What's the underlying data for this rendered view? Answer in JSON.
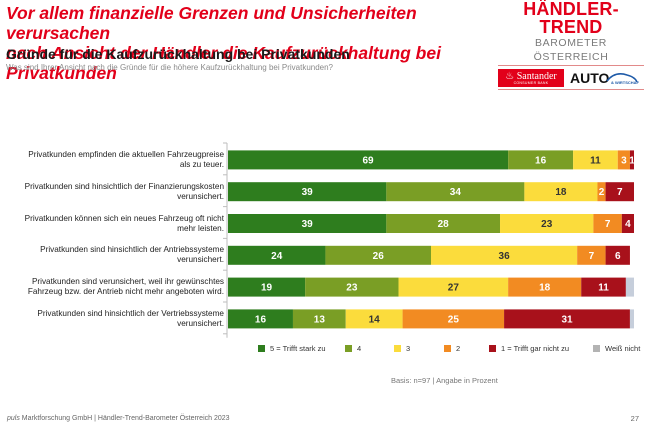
{
  "header": {
    "headline_line1": "Vor allem finanzielle Grenzen und Unsicherheiten verursachen",
    "headline_line2": "nach Ansicht der Händler die Kaufzurückhaltung bei Privatkunden",
    "subtitle": "Gründe für die Kaufzurückhaltung bei Privatkunden",
    "question": "Was sind Ihrer Ansicht nach die Gründe für die höhere Kaufzurückhaltung bei Privatkunden?"
  },
  "logo": {
    "brand": "HÄNDLER-TREND",
    "sub": "BAROMETER ÖSTERREICH",
    "sponsor1": "Santander",
    "sponsor1_sub": "CONSUMER BANK",
    "sponsor2": "AUTO",
    "sponsor2_sub": "& WIRTSCHAFT"
  },
  "chart_data": {
    "type": "bar",
    "orientation": "horizontal",
    "stacked": true,
    "title": "Gründe für die Kaufzurückhaltung bei Privatkunden",
    "xlabel": "",
    "ylabel": "",
    "xlim": [
      0,
      100
    ],
    "grid": false,
    "legend_position": "bottom",
    "categories": [
      [
        "Privatkunden empfinden die aktuellen Fahrzeugpreise",
        "als zu teuer."
      ],
      [
        "Privatkunden sind hinsichtlich der Finanzierungskosten",
        "verunsichert."
      ],
      [
        "Privatkunden können sich ein neues Fahrzeug oft nicht",
        "mehr leisten."
      ],
      [
        "Privatkunden sind hinsichtlich der Antriebssysteme",
        "verunsichert."
      ],
      [
        "Privatkunden sind verunsichert, weil ihr gewünschtes",
        "Fahrzeug bzw. der Antrieb nicht mehr angeboten wird."
      ],
      [
        "Privatkunden sind hinsichtlich der Vertriebssysteme",
        "verunsichert."
      ]
    ],
    "series": [
      {
        "name": "5 = Trifft stark zu",
        "color": "#2e7d1e",
        "label_color": "#ffffff",
        "values": [
          69,
          39,
          39,
          24,
          19,
          16
        ]
      },
      {
        "name": "4",
        "color": "#7a9e25",
        "label_color": "#ffffff",
        "values": [
          16,
          34,
          28,
          26,
          23,
          13
        ]
      },
      {
        "name": "3",
        "color": "#fbdc3c",
        "label_color": "#333333",
        "values": [
          11,
          18,
          23,
          36,
          27,
          14
        ]
      },
      {
        "name": "2",
        "color": "#f28b22",
        "label_color": "#ffffff",
        "values": [
          3,
          2,
          7,
          7,
          18,
          25
        ]
      },
      {
        "name": "1 = Trifft gar nicht zu",
        "color": "#a8111b",
        "label_color": "#ffffff",
        "values": [
          1,
          7,
          4,
          6,
          11,
          31
        ]
      },
      {
        "name": "Weiß nicht",
        "color": "#c6cedb",
        "legend_color": "#b3b3b3",
        "label_color": "#333333",
        "values": [
          0,
          0,
          0,
          0,
          2,
          1
        ],
        "show_labels": false
      }
    ]
  },
  "basis": "Basis: n=97 | Angabe in Prozent",
  "footer": {
    "company_italic": "puls",
    "text": " Marktforschung GmbH | Händler-Trend-Barometer Österreich 2023",
    "page": "27"
  }
}
